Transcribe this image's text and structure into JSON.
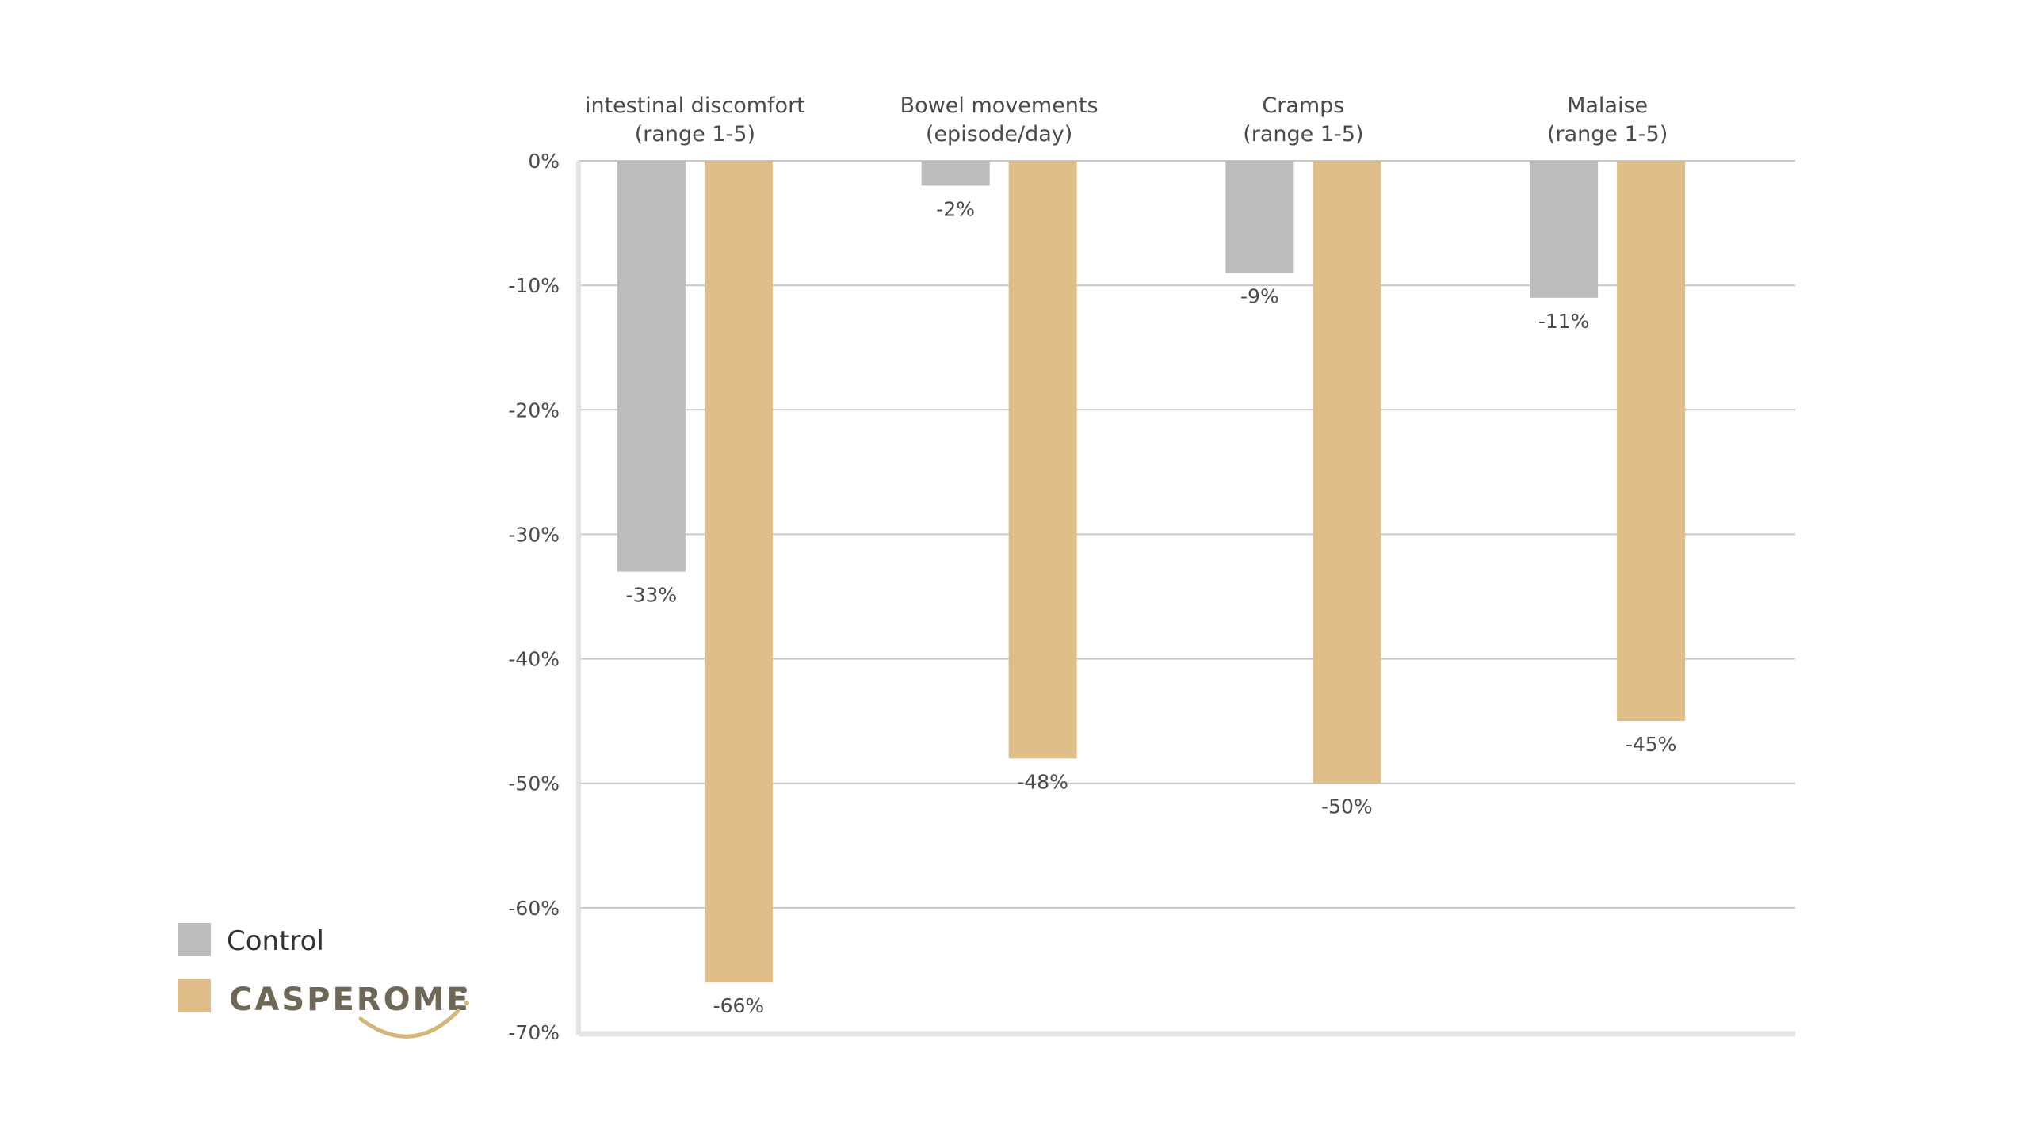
{
  "chart_data": {
    "type": "bar",
    "categories": [
      [
        "intestinal discomfort",
        "(range 1-5)"
      ],
      [
        "Bowel movements",
        "(episode/day)"
      ],
      [
        "Cramps",
        "(range 1-5)"
      ],
      [
        "Malaise",
        "(range 1-5)"
      ]
    ],
    "series": [
      {
        "name": "Control",
        "values": [
          -33,
          -2,
          -9,
          -11
        ],
        "labels": [
          "-33%",
          "-2%",
          "-9%",
          "-11%"
        ],
        "color": "#bcbcbc"
      },
      {
        "name": "CASPEROME",
        "values": [
          -66,
          -48,
          -50,
          -45
        ],
        "labels": [
          "-66%",
          "-48%",
          "-50%",
          "-45%"
        ],
        "color": "#dfbe8a"
      }
    ],
    "ylim": [
      -70,
      0
    ],
    "yticks": [
      0,
      -10,
      -20,
      -30,
      -40,
      -50,
      -60,
      -70
    ],
    "ytick_labels": [
      "0%",
      "-10%",
      "-20%",
      "-30%",
      "-40%",
      "-50%",
      "-60%",
      "-70%"
    ],
    "xaxis_position": "top",
    "grid": true,
    "legend": {
      "placement": "bottom-left",
      "items": [
        {
          "label": "Control",
          "color": "#bcbcbc"
        },
        {
          "label": "CASPEROME",
          "color": "#dfbe8a",
          "is_logo": true
        }
      ]
    },
    "title": "",
    "xlabel": "",
    "ylabel": ""
  },
  "colors": {
    "grid": "#c8c8c8",
    "axis": "#e3e3e3",
    "text": "#4a4a4a",
    "logo_text": "#6e6656",
    "logo_swoosh": "#d6b47a"
  }
}
